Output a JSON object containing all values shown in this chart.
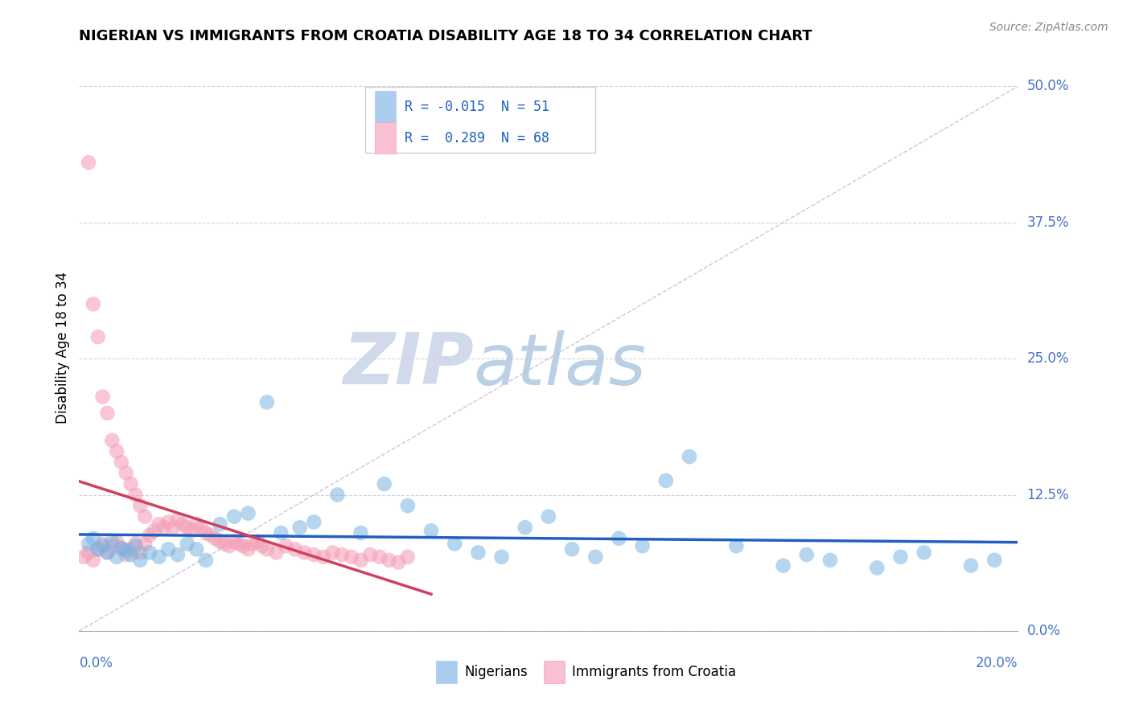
{
  "title": "NIGERIAN VS IMMIGRANTS FROM CROATIA DISABILITY AGE 18 TO 34 CORRELATION CHART",
  "source": "Source: ZipAtlas.com",
  "ylabel": "Disability Age 18 to 34",
  "ytick_labels": [
    "0.0%",
    "12.5%",
    "25.0%",
    "37.5%",
    "50.0%"
  ],
  "ytick_values": [
    0.0,
    0.125,
    0.25,
    0.375,
    0.5
  ],
  "xlim": [
    0.0,
    0.2
  ],
  "ylim": [
    0.0,
    0.52
  ],
  "blue_color": "#7ab3e0",
  "pink_color": "#f4a0b8",
  "blue_line_color": "#2060c0",
  "pink_line_color": "#d04060",
  "watermark_zip": "ZIP",
  "watermark_atlas": "atlas",
  "legend_r1": "R = -0.015",
  "legend_n1": "N = 51",
  "legend_r2": "R =  0.289",
  "legend_n2": "N = 68",
  "legend_color1": "#aaccee",
  "legend_color2": "#f8c0d0"
}
